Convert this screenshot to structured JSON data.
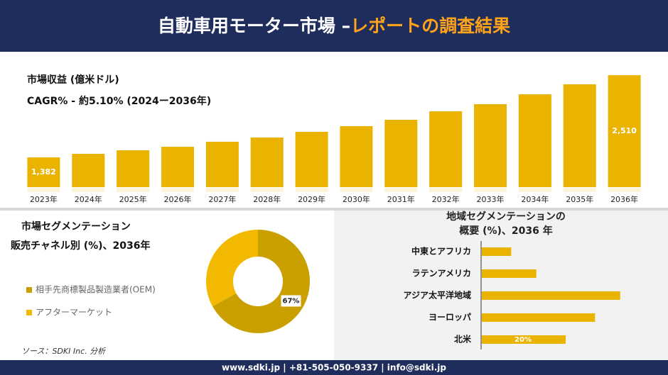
{
  "header": {
    "title_parts": [
      "自動車用モーター市場 –",
      "レポートの調査結果"
    ]
  },
  "chart_data": [
    {
      "type": "bar",
      "title": "市場収益 (億米ドル)",
      "subtitle": "CAGR% - 約5.10% (2024ー2036年)",
      "categories": [
        "2023年",
        "2024年",
        "2025年",
        "2026年",
        "2027年",
        "2028年",
        "2029年",
        "2030年",
        "2031年",
        "2032年",
        "2033年",
        "2034年",
        "2035年",
        "2036年"
      ],
      "values": [
        1382,
        1431,
        1480,
        1528,
        1597,
        1655,
        1733,
        1811,
        1898,
        2015,
        2112,
        2248,
        2385,
        2510
      ],
      "value_labels": [
        "1,382",
        null,
        null,
        null,
        null,
        null,
        null,
        null,
        null,
        null,
        null,
        null,
        null,
        "2,510"
      ],
      "color": "#e9b300",
      "ylim": [
        974,
        2569
      ]
    },
    {
      "type": "donut",
      "title": "市場セグメンテーション",
      "subtitle": "販売チャネル別 (%)、2036年",
      "categories": [
        "相手先商標製品製造業者(OEM)",
        "アフターマーケット"
      ],
      "values": [
        67,
        33
      ],
      "value_labels": [
        "67%",
        null
      ],
      "colors": [
        "#c9a000",
        "#f2b900"
      ]
    },
    {
      "type": "hbar",
      "title": "地域セグメンテーションの",
      "subtitle": "概要 (%)、2036 年",
      "categories": [
        "中東とアフリカ",
        "ラテンアメリカ",
        "アジア太平洋地域",
        "ヨーロッパ",
        "北米"
      ],
      "values": [
        7,
        13,
        33,
        27,
        20
      ],
      "value_labels": [
        null,
        null,
        null,
        null,
        "20%"
      ],
      "color": "#e9b300",
      "xlim": [
        0,
        40
      ]
    }
  ],
  "source": "ソース：SDKI Inc. 分析",
  "footer": "www.sdki.jp | +81-505-050-9337 | info@sdki.jp"
}
